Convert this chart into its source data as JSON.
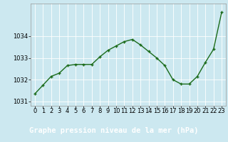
{
  "x": [
    0,
    1,
    2,
    3,
    4,
    5,
    6,
    7,
    8,
    9,
    10,
    11,
    12,
    13,
    14,
    15,
    16,
    17,
    18,
    19,
    20,
    21,
    22,
    23
  ],
  "y": [
    1031.35,
    1031.75,
    1032.15,
    1032.3,
    1032.65,
    1032.7,
    1032.7,
    1032.7,
    1033.05,
    1033.35,
    1033.55,
    1033.75,
    1033.85,
    1033.6,
    1033.3,
    1033.0,
    1032.65,
    1032.0,
    1031.8,
    1031.8,
    1032.15,
    1032.8,
    1033.4,
    1035.1
  ],
  "line_color": "#1a6b1a",
  "marker": "+",
  "marker_size": 3.5,
  "line_width": 1.0,
  "title": "Graphe pression niveau de la mer (hPa)",
  "xlim": [
    -0.5,
    23.5
  ],
  "ylim": [
    1030.8,
    1035.5
  ],
  "yticks": [
    1031,
    1032,
    1033,
    1034
  ],
  "xticks": [
    0,
    1,
    2,
    3,
    4,
    5,
    6,
    7,
    8,
    9,
    10,
    11,
    12,
    13,
    14,
    15,
    16,
    17,
    18,
    19,
    20,
    21,
    22,
    23
  ],
  "plot_bg_color": "#cce8f0",
  "fig_bg_color": "#cce8f0",
  "grid_color": "#ffffff",
  "title_color": "#1a6b1a",
  "title_fontsize": 7.5,
  "tick_fontsize": 6.0,
  "title_bg_color": "#3a7a3a",
  "title_text_color": "#ffffff"
}
